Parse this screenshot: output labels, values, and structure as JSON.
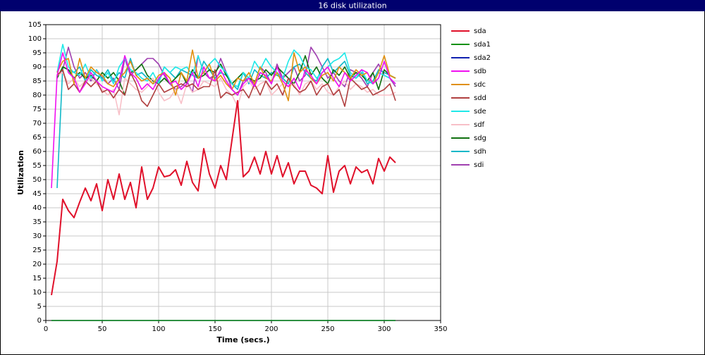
{
  "chart_data": {
    "type": "line",
    "title": "16 disk utilization",
    "x_label": "Time (secs.)",
    "y_label": "Utilization",
    "xlim": [
      0,
      350
    ],
    "ylim": [
      0,
      105
    ],
    "xticks": [
      0,
      50,
      100,
      150,
      200,
      250,
      300,
      350
    ],
    "yticks": [
      0,
      5,
      10,
      15,
      20,
      25,
      30,
      35,
      40,
      45,
      50,
      55,
      60,
      65,
      70,
      75,
      80,
      85,
      90,
      95,
      100,
      105
    ],
    "grid": true,
    "x": [
      5,
      10,
      15,
      20,
      25,
      30,
      35,
      40,
      45,
      50,
      55,
      60,
      65,
      70,
      75,
      80,
      85,
      90,
      95,
      100,
      105,
      110,
      115,
      120,
      125,
      130,
      135,
      140,
      145,
      150,
      155,
      160,
      165,
      170,
      175,
      180,
      185,
      190,
      195,
      200,
      205,
      210,
      215,
      220,
      225,
      230,
      235,
      240,
      245,
      250,
      255,
      260,
      265,
      270,
      275,
      280,
      285,
      290,
      295,
      300,
      305,
      310
    ],
    "series": [
      {
        "name": "sda",
        "color": "#e0102a",
        "values": [
          9,
          21,
          43,
          39,
          36.5,
          42,
          47,
          42.5,
          48.5,
          39,
          50,
          43,
          52,
          43,
          49,
          40,
          54.5,
          43,
          47,
          54.5,
          51,
          51.5,
          53.5,
          48,
          56.5,
          49,
          46,
          61,
          52,
          47,
          55,
          50,
          64,
          78,
          51,
          53,
          58,
          52,
          60,
          52,
          58.5,
          51,
          56,
          48.5,
          53,
          53,
          48,
          47,
          45,
          58.5,
          45.5,
          53,
          55,
          48.5,
          54.5,
          52.5,
          53.5,
          48.5,
          57.5,
          53,
          58,
          56
        ]
      },
      {
        "name": "sda1",
        "color": "#109010",
        "values": [
          0,
          0,
          0,
          0,
          0,
          0,
          0,
          0,
          0,
          0,
          0,
          0,
          0,
          0,
          0,
          0,
          0,
          0,
          0,
          0,
          0,
          0,
          0,
          0,
          0,
          0,
          0,
          0,
          0,
          0,
          0,
          0,
          0,
          0,
          0,
          0,
          0,
          0,
          0,
          0,
          0,
          0,
          0,
          0,
          0,
          0,
          0,
          0,
          0,
          0,
          0,
          0,
          0,
          0,
          0,
          0,
          0,
          0,
          0,
          0,
          0,
          0
        ]
      },
      {
        "name": "sda2",
        "color": "#1020b0",
        "values": [
          0,
          0,
          0,
          0,
          0,
          0,
          0,
          0,
          0,
          0,
          0,
          0,
          0,
          0,
          0,
          0,
          0,
          0,
          0,
          0,
          0,
          0,
          0,
          0,
          0,
          0,
          0,
          0,
          0,
          0,
          0,
          0,
          0,
          0,
          0,
          0,
          0,
          0,
          0,
          0,
          0,
          0,
          0,
          0,
          0,
          0,
          0,
          0,
          0,
          0,
          0,
          0,
          0,
          0,
          0,
          0,
          0,
          0,
          0,
          0,
          0,
          0
        ]
      },
      {
        "name": "sdb",
        "color": "#f010f0",
        "values": [
          47,
          87,
          95,
          88,
          86,
          81,
          84,
          88,
          85,
          83,
          82,
          81,
          85,
          94,
          88,
          86,
          82,
          84,
          82,
          86,
          88,
          84,
          85,
          82,
          84,
          88,
          83,
          90,
          86,
          85,
          89,
          85,
          82,
          80,
          84,
          86,
          83,
          88,
          87,
          84,
          90,
          85,
          83,
          86,
          82,
          89,
          87,
          84,
          88,
          90,
          86,
          83,
          88,
          85,
          87,
          89,
          88,
          84,
          86,
          92,
          86,
          84
        ]
      },
      {
        "name": "sdc",
        "color": "#e09010",
        "values": [
          null,
          88,
          92,
          93,
          84,
          93,
          86,
          90,
          88,
          87,
          84,
          83,
          86,
          88,
          92,
          87,
          85,
          86,
          84,
          87,
          88,
          86,
          80,
          88,
          85,
          96,
          86,
          88,
          91,
          85,
          87,
          84,
          82,
          86,
          85,
          88,
          84,
          90,
          86,
          85,
          88,
          84,
          78,
          95,
          88,
          90,
          86,
          84,
          87,
          88,
          85,
          90,
          88,
          86,
          89,
          87,
          88,
          84,
          88,
          94,
          87,
          86
        ]
      },
      {
        "name": "sdd",
        "color": "#b04040",
        "values": [
          null,
          87,
          89,
          82,
          84,
          81,
          85,
          83,
          85,
          81,
          82,
          79,
          82,
          80,
          88,
          84,
          78,
          76,
          80,
          84,
          81,
          82,
          83,
          84,
          83,
          84,
          82,
          83,
          83,
          89,
          79,
          81,
          80,
          81,
          82,
          79,
          84,
          80,
          85,
          82,
          84,
          80,
          86,
          83,
          81,
          82,
          85,
          80,
          83,
          84,
          80,
          82,
          76,
          86,
          84,
          82,
          83,
          80,
          81,
          82,
          84,
          78
        ]
      },
      {
        "name": "sde",
        "color": "#20e8e8",
        "values": [
          null,
          88,
          98,
          90,
          88,
          87,
          91,
          86,
          89,
          85,
          88,
          84,
          90,
          93,
          89,
          88,
          86,
          85,
          88,
          84,
          90,
          88,
          90,
          89,
          90,
          87,
          94,
          88,
          91,
          93,
          90,
          88,
          84,
          83,
          88,
          86,
          92,
          89,
          93,
          90,
          88,
          86,
          92,
          96,
          94,
          90,
          89,
          86,
          88,
          90,
          92,
          93,
          95,
          88,
          86,
          89,
          85,
          84,
          88,
          87,
          86,
          84
        ]
      },
      {
        "name": "sdf",
        "color": "#f8c0c8",
        "values": [
          null,
          87,
          88,
          84,
          86,
          83,
          85,
          86,
          84,
          82,
          80,
          82,
          73,
          86,
          84,
          82,
          81,
          83,
          86,
          81,
          78,
          79,
          82,
          77,
          84,
          81,
          82,
          85,
          84,
          83,
          86,
          82,
          80,
          76,
          83,
          85,
          82,
          84,
          85,
          80,
          82,
          84,
          83,
          84,
          80,
          84,
          85,
          82,
          84,
          81,
          80,
          83,
          85,
          82,
          84,
          83,
          81,
          82,
          80,
          80,
          80,
          81
        ]
      },
      {
        "name": "sdg",
        "color": "#107010",
        "values": [
          null,
          86,
          90,
          89,
          86,
          88,
          86,
          87,
          85,
          88,
          86,
          88,
          85,
          80,
          88,
          89,
          91,
          87,
          85,
          84,
          86,
          84,
          86,
          88,
          84,
          89,
          86,
          87,
          89,
          88,
          91,
          87,
          84,
          86,
          88,
          86,
          85,
          86,
          89,
          87,
          90,
          88,
          86,
          84,
          88,
          94,
          87,
          90,
          86,
          84,
          89,
          87,
          90,
          86,
          88,
          87,
          85,
          88,
          82,
          89,
          87,
          86
        ]
      },
      {
        "name": "sdh",
        "color": "#10b8c8",
        "values": [
          null,
          47,
          90,
          89,
          88,
          90,
          85,
          89,
          87,
          86,
          89,
          85,
          88,
          86,
          93,
          87,
          88,
          86,
          84,
          85,
          90,
          88,
          86,
          89,
          88,
          87,
          86,
          92,
          89,
          86,
          88,
          87,
          84,
          82,
          88,
          84,
          89,
          87,
          86,
          88,
          87,
          86,
          84,
          90,
          91,
          88,
          86,
          85,
          90,
          93,
          88,
          90,
          92,
          87,
          86,
          88,
          84,
          85,
          89,
          88,
          87,
          86
        ]
      },
      {
        "name": "sdi",
        "color": "#a040b0",
        "values": [
          null,
          87,
          89,
          97,
          90,
          86,
          88,
          85,
          89,
          86,
          84,
          86,
          82,
          93,
          87,
          89,
          91,
          93,
          93,
          91,
          87,
          84,
          82,
          83,
          85,
          81,
          94,
          88,
          86,
          87,
          93,
          88,
          82,
          80,
          85,
          86,
          84,
          90,
          88,
          84,
          91,
          86,
          88,
          90,
          85,
          87,
          97,
          94,
          90,
          86,
          88,
          85,
          83,
          89,
          88,
          86,
          83,
          88,
          91,
          87,
          86,
          83
        ]
      }
    ]
  }
}
